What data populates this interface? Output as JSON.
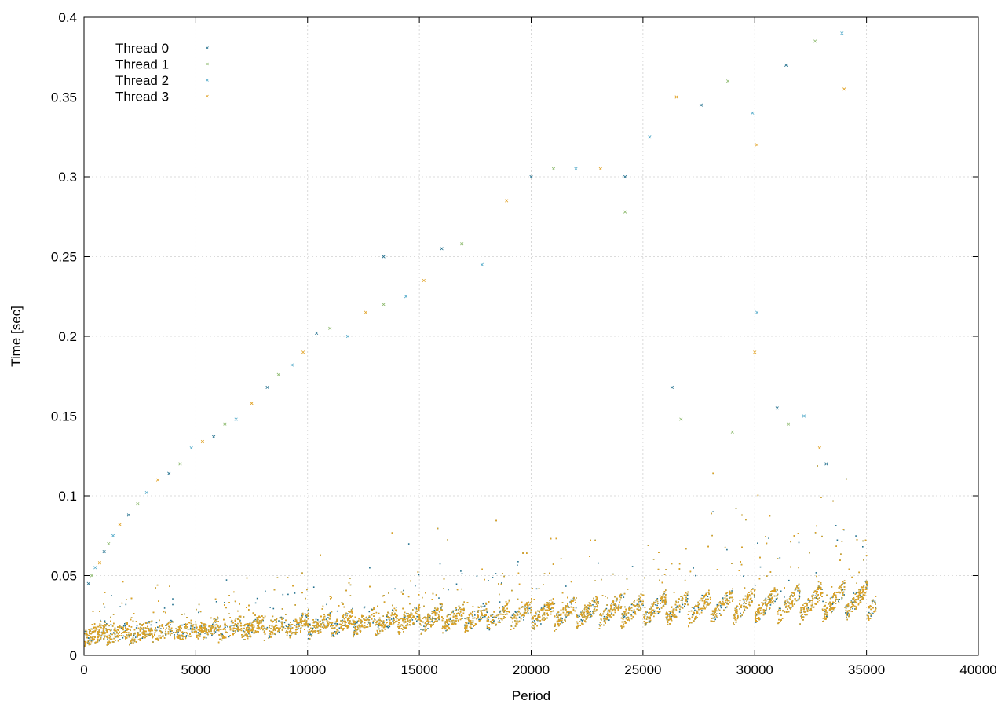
{
  "chart_data": {
    "type": "scatter",
    "title": "",
    "xlabel": "Period",
    "ylabel": "Time [sec]",
    "xlim": [
      0,
      40000
    ],
    "ylim": [
      0,
      0.4
    ],
    "x_ticks": [
      0,
      5000,
      10000,
      15000,
      20000,
      25000,
      30000,
      35000,
      40000
    ],
    "y_ticks": [
      0,
      0.05,
      0.1,
      0.15,
      0.2,
      0.25,
      0.3,
      0.35,
      0.4
    ],
    "grid": true,
    "legend_position": "top-left",
    "marker": "x",
    "series": [
      {
        "name": "Thread 0",
        "color": "#1f6e8c"
      },
      {
        "name": "Thread 1",
        "color": "#8ab86a"
      },
      {
        "name": "Thread 2",
        "color": "#4fa8c8"
      },
      {
        "name": "Thread 3",
        "color": "#e0a020"
      }
    ],
    "x_max_data": 35400,
    "baseline_band": {
      "description_free": true,
      "points": [
        [
          0,
          0.012
        ],
        [
          5000,
          0.014
        ],
        [
          10000,
          0.016
        ],
        [
          15000,
          0.019
        ],
        [
          20000,
          0.021
        ],
        [
          25000,
          0.023
        ],
        [
          30000,
          0.025
        ],
        [
          35400,
          0.027
        ]
      ]
    },
    "outliers": [
      [
        200,
        0.045
      ],
      [
        350,
        0.05
      ],
      [
        500,
        0.055
      ],
      [
        700,
        0.058
      ],
      [
        900,
        0.065
      ],
      [
        1100,
        0.07
      ],
      [
        1300,
        0.075
      ],
      [
        1600,
        0.082
      ],
      [
        2000,
        0.088
      ],
      [
        2400,
        0.095
      ],
      [
        2800,
        0.102
      ],
      [
        3300,
        0.11
      ],
      [
        3800,
        0.114
      ],
      [
        4300,
        0.12
      ],
      [
        4800,
        0.13
      ],
      [
        5300,
        0.134
      ],
      [
        5800,
        0.137
      ],
      [
        6300,
        0.145
      ],
      [
        6800,
        0.148
      ],
      [
        7500,
        0.158
      ],
      [
        8200,
        0.168
      ],
      [
        8700,
        0.176
      ],
      [
        9300,
        0.182
      ],
      [
        9800,
        0.19
      ],
      [
        10400,
        0.202
      ],
      [
        11000,
        0.205
      ],
      [
        11800,
        0.2
      ],
      [
        12600,
        0.215
      ],
      [
        13400,
        0.25
      ],
      [
        13400,
        0.22
      ],
      [
        14400,
        0.225
      ],
      [
        15200,
        0.235
      ],
      [
        16000,
        0.255
      ],
      [
        16900,
        0.258
      ],
      [
        17800,
        0.245
      ],
      [
        18900,
        0.285
      ],
      [
        20000,
        0.3
      ],
      [
        21000,
        0.305
      ],
      [
        22000,
        0.305
      ],
      [
        23100,
        0.305
      ],
      [
        24200,
        0.3
      ],
      [
        24200,
        0.278
      ],
      [
        25300,
        0.325
      ],
      [
        26500,
        0.35
      ],
      [
        27600,
        0.345
      ],
      [
        28800,
        0.36
      ],
      [
        29900,
        0.34
      ],
      [
        30100,
        0.32
      ],
      [
        31400,
        0.37
      ],
      [
        32700,
        0.385
      ],
      [
        33900,
        0.39
      ],
      [
        34000,
        0.355
      ],
      [
        26300,
        0.168
      ],
      [
        26700,
        0.148
      ],
      [
        30100,
        0.215
      ],
      [
        30000,
        0.19
      ],
      [
        31000,
        0.155
      ],
      [
        31500,
        0.145
      ],
      [
        32200,
        0.15
      ],
      [
        32900,
        0.13
      ],
      [
        33200,
        0.12
      ],
      [
        29000,
        0.14
      ]
    ]
  }
}
